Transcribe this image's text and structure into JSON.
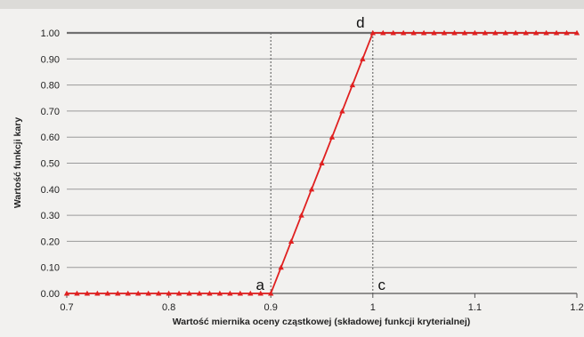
{
  "chart_data": {
    "type": "line",
    "title": "",
    "xlabel": "Wartość miernika oceny cząstkowej (składowej funkcji kryterialnej)",
    "ylabel": "Wartość funkcji kary",
    "xlim": [
      0.7,
      1.2
    ],
    "ylim": [
      0,
      1
    ],
    "grid": true,
    "legend": "none",
    "x_ticks": [
      "0.7",
      "0.8",
      "0.9",
      "1",
      "1.1",
      "1.2"
    ],
    "y_ticks": [
      "0.00",
      "0.10",
      "0.20",
      "0.30",
      "0.40",
      "0.50",
      "0.60",
      "0.70",
      "0.80",
      "0.90",
      "1.00"
    ],
    "series": [
      {
        "color": "#e02020",
        "marker": "triangle",
        "x": [
          0.7,
          0.71,
          0.72,
          0.73,
          0.74,
          0.75,
          0.76,
          0.77,
          0.78,
          0.79,
          0.8,
          0.81,
          0.82,
          0.83,
          0.84,
          0.85,
          0.86,
          0.87,
          0.88,
          0.89,
          0.9,
          0.91,
          0.92,
          0.93,
          0.94,
          0.95,
          0.96,
          0.97,
          0.98,
          0.99,
          1.0,
          1.01,
          1.02,
          1.03,
          1.04,
          1.05,
          1.06,
          1.07,
          1.08,
          1.09,
          1.1,
          1.11,
          1.12,
          1.13,
          1.14,
          1.15,
          1.16,
          1.17,
          1.18,
          1.19,
          1.2
        ],
        "y": [
          0,
          0,
          0,
          0,
          0,
          0,
          0,
          0,
          0,
          0,
          0,
          0,
          0,
          0,
          0,
          0,
          0,
          0,
          0,
          0,
          0,
          0.1,
          0.2,
          0.3,
          0.4,
          0.5,
          0.6,
          0.7,
          0.8,
          0.9,
          1,
          1,
          1,
          1,
          1,
          1,
          1,
          1,
          1,
          1,
          1,
          1,
          1,
          1,
          1,
          1,
          1,
          1,
          1,
          1,
          1
        ]
      }
    ],
    "reference_lines": {
      "vertical_x": [
        0.9,
        1.0
      ],
      "horizontal_y": 1.0,
      "color": "#555555"
    },
    "annotations": [
      {
        "label": "a",
        "x": 0.9,
        "y": 0
      },
      {
        "label": "c",
        "x": 1.0,
        "y": 0
      },
      {
        "label": "d",
        "x": 1.0,
        "y": 1.0
      }
    ]
  }
}
